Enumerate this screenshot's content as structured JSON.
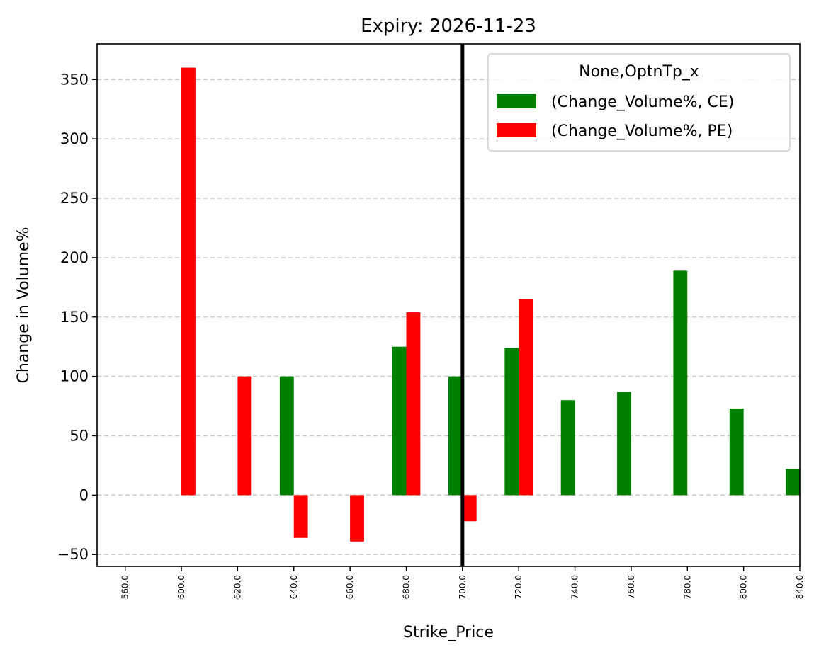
{
  "chart_data": {
    "type": "bar",
    "title": "Expiry: 2026-11-23",
    "xlabel": "Strike_Price",
    "ylabel": "Change in Volume%",
    "categories": [
      "560.0",
      "600.0",
      "620.0",
      "640.0",
      "660.0",
      "680.0",
      "700.0",
      "720.0",
      "740.0",
      "760.0",
      "780.0",
      "800.0",
      "840.0"
    ],
    "series": [
      {
        "name": "(Change_Volume%, CE)",
        "color": "#008000",
        "values": [
          null,
          null,
          null,
          100,
          null,
          125,
          100,
          124,
          80,
          87,
          189,
          73,
          22
        ]
      },
      {
        "name": "(Change_Volume%, PE)",
        "color": "#ff0000",
        "values": [
          null,
          360,
          100,
          -36,
          -39,
          154,
          -22,
          165,
          null,
          null,
          null,
          null,
          null
        ]
      }
    ],
    "ylim": [
      -60,
      380
    ],
    "yticks": [
      -50,
      0,
      50,
      100,
      150,
      200,
      250,
      300,
      350
    ],
    "ytick_labels": [
      "−50",
      "0",
      "50",
      "100",
      "150",
      "200",
      "250",
      "300",
      "350"
    ],
    "grid": "y-dashed",
    "vline_category": "700.0",
    "legend": {
      "title": "None,OptnTp_x",
      "placement": "top-right"
    }
  }
}
